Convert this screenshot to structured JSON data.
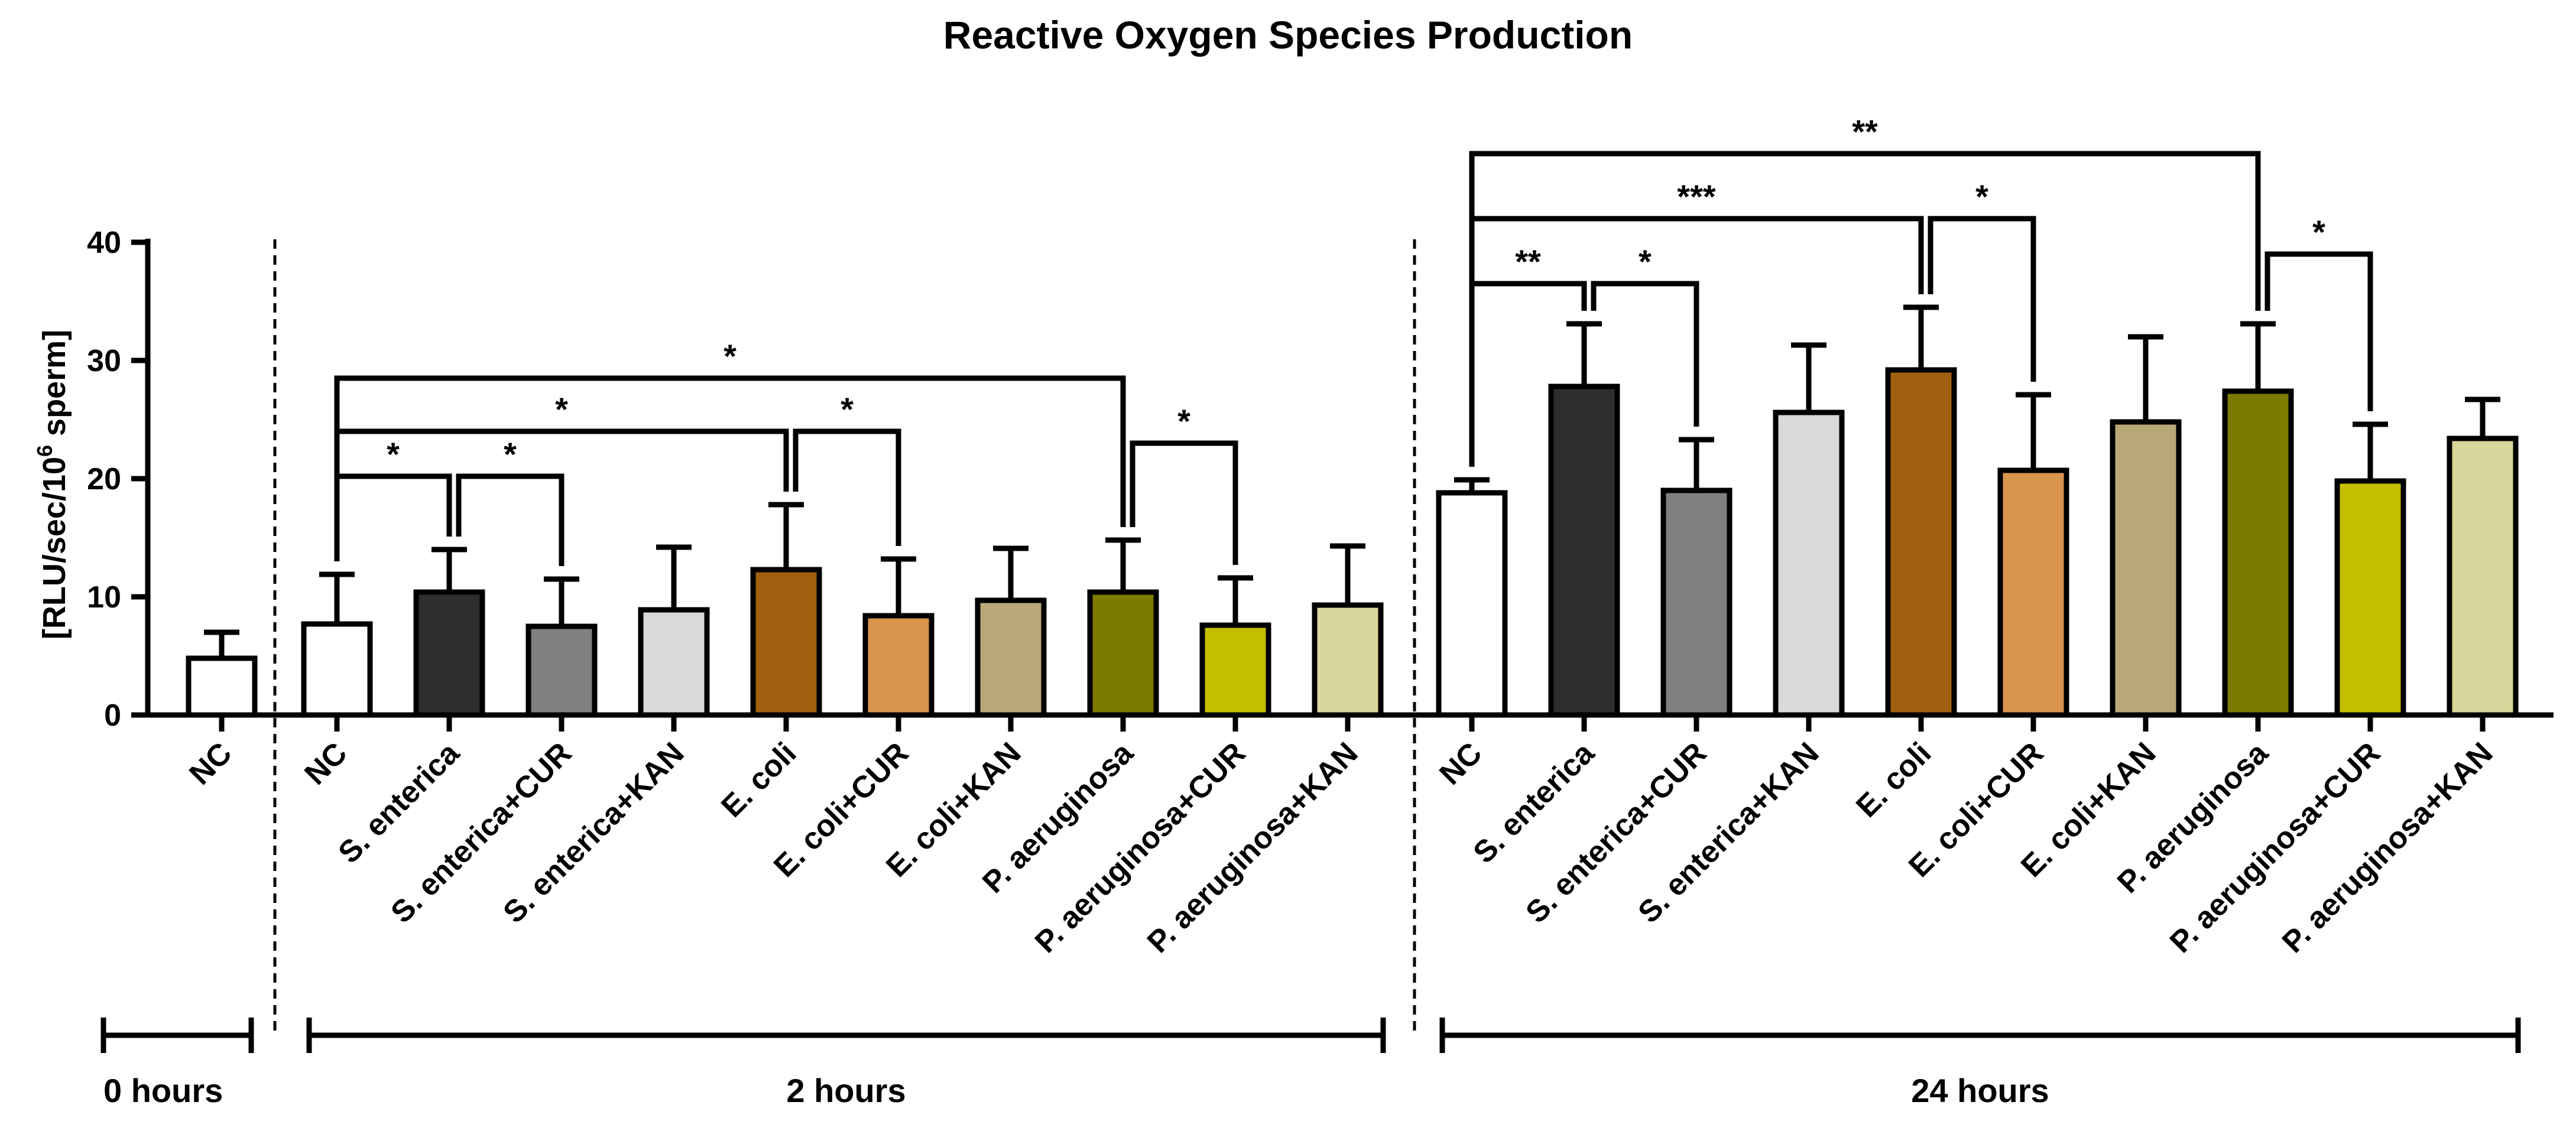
{
  "chart_data": {
    "type": "bar",
    "title": "Reactive Oxygen Species Production",
    "ylabel": {
      "main": "[RLU/sec/10",
      "sup": "6",
      "tail": " sperm]"
    },
    "xlabel": "",
    "ylim": [
      0,
      40
    ],
    "yticks": [
      "0",
      "10",
      "20",
      "30",
      "40"
    ],
    "ytick_values": [
      0,
      10,
      20,
      30,
      40
    ],
    "grid": false,
    "colors": {
      "NC": "#ffffff",
      "S. enterica": "#2e2e2e",
      "S. enterica+CUR": "#808080",
      "S. enterica+KAN": "#d9d9d9",
      "E. coli": "#a0600f",
      "E. coli+CUR": "#d9944d",
      "E. coli+KAN": "#b8a878",
      "P. aeruginosa": "#7b7b00",
      "P. aeruginosa+CUR": "#c4bd00",
      "P. aeruginosa+KAN": "#d9d69b"
    },
    "groups": [
      {
        "label": "0 hours",
        "bars": [
          {
            "category": "NC",
            "value": 4.8,
            "error": 2.2
          }
        ]
      },
      {
        "label": "2 hours",
        "bars": [
          {
            "category": "NC",
            "value": 7.7,
            "error": 4.2
          },
          {
            "category": "S. enterica",
            "value": 10.4,
            "error": 3.6
          },
          {
            "category": "S. enterica+CUR",
            "value": 7.5,
            "error": 4.0
          },
          {
            "category": "S. enterica+KAN",
            "value": 8.9,
            "error": 5.3
          },
          {
            "category": "E. coli",
            "value": 12.3,
            "error": 5.5
          },
          {
            "category": "E. coli+CUR",
            "value": 8.4,
            "error": 4.8
          },
          {
            "category": "E. coli+KAN",
            "value": 9.7,
            "error": 4.4
          },
          {
            "category": "P. aeruginosa",
            "value": 10.4,
            "error": 4.4
          },
          {
            "category": "P. aeruginosa+CUR",
            "value": 7.6,
            "error": 4.0
          },
          {
            "category": "P. aeruginosa+KAN",
            "value": 9.3,
            "error": 5.0
          }
        ],
        "significance": [
          {
            "from": 0,
            "to": 1,
            "label": "*",
            "level": 20.2
          },
          {
            "from": 1,
            "to": 2,
            "label": "*",
            "level": 20.2
          },
          {
            "from": 0,
            "to": 4,
            "label": "*",
            "level": 24.0
          },
          {
            "from": 4,
            "to": 5,
            "label": "*",
            "level": 24.0
          },
          {
            "from": 0,
            "to": 7,
            "label": "*",
            "level": 28.5
          },
          {
            "from": 7,
            "to": 8,
            "label": "*",
            "level": 23.0
          }
        ]
      },
      {
        "label": "24 hours",
        "bars": [
          {
            "category": "NC",
            "value": 18.8,
            "error": 1.1
          },
          {
            "category": "S. enterica",
            "value": 27.8,
            "error": 5.3
          },
          {
            "category": "S. enterica+CUR",
            "value": 19.0,
            "error": 4.3
          },
          {
            "category": "S. enterica+KAN",
            "value": 25.6,
            "error": 5.7
          },
          {
            "category": "E. coli",
            "value": 29.2,
            "error": 5.3
          },
          {
            "category": "E. coli+CUR",
            "value": 20.7,
            "error": 6.4
          },
          {
            "category": "E. coli+KAN",
            "value": 24.8,
            "error": 7.2
          },
          {
            "category": "P. aeruginosa",
            "value": 27.4,
            "error": 5.7
          },
          {
            "category": "P. aeruginosa+CUR",
            "value": 19.8,
            "error": 4.8
          },
          {
            "category": "P. aeruginosa+KAN",
            "value": 23.4,
            "error": 3.3
          }
        ],
        "significance": [
          {
            "from": 0,
            "to": 1,
            "label": "**",
            "level": 36.5
          },
          {
            "from": 1,
            "to": 2,
            "label": "*",
            "level": 36.5
          },
          {
            "from": 0,
            "to": 4,
            "label": "***",
            "level": 42.0
          },
          {
            "from": 4,
            "to": 5,
            "label": "*",
            "level": 42.0
          },
          {
            "from": 0,
            "to": 7,
            "label": "**",
            "level": 47.5
          },
          {
            "from": 7,
            "to": 8,
            "label": "*",
            "level": 39.0
          }
        ]
      }
    ]
  }
}
